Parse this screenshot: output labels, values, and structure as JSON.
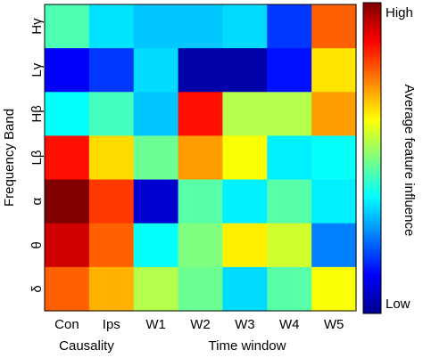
{
  "chart_data": {
    "type": "heatmap",
    "categories": [
      "Con",
      "Ips",
      "W1",
      "W2",
      "W3",
      "W4",
      "W5"
    ],
    "rows": [
      "Hγ",
      "Lγ",
      "Hβ",
      "Lβ",
      "α",
      "θ",
      "δ"
    ],
    "values": [
      [
        0.45,
        0.35,
        0.32,
        0.32,
        0.34,
        0.18,
        0.78
      ],
      [
        0.12,
        0.18,
        0.34,
        0.04,
        0.04,
        0.14,
        0.65
      ],
      [
        0.38,
        0.44,
        0.32,
        0.86,
        0.55,
        0.55,
        0.72
      ],
      [
        0.86,
        0.66,
        0.48,
        0.72,
        0.62,
        0.36,
        0.38
      ],
      [
        1.0,
        0.82,
        0.08,
        0.46,
        0.36,
        0.46,
        0.36
      ],
      [
        0.92,
        0.78,
        0.38,
        0.5,
        0.64,
        0.58,
        0.25
      ],
      [
        0.78,
        0.7,
        0.55,
        0.48,
        0.34,
        0.46,
        0.62
      ]
    ],
    "ylabel": "Frequency Band",
    "xlabel_groups": [
      "Causality",
      "Time window"
    ],
    "colorbar": {
      "label": "Average feature influence",
      "high": "High",
      "low": "Low",
      "colormap": "jet"
    }
  }
}
